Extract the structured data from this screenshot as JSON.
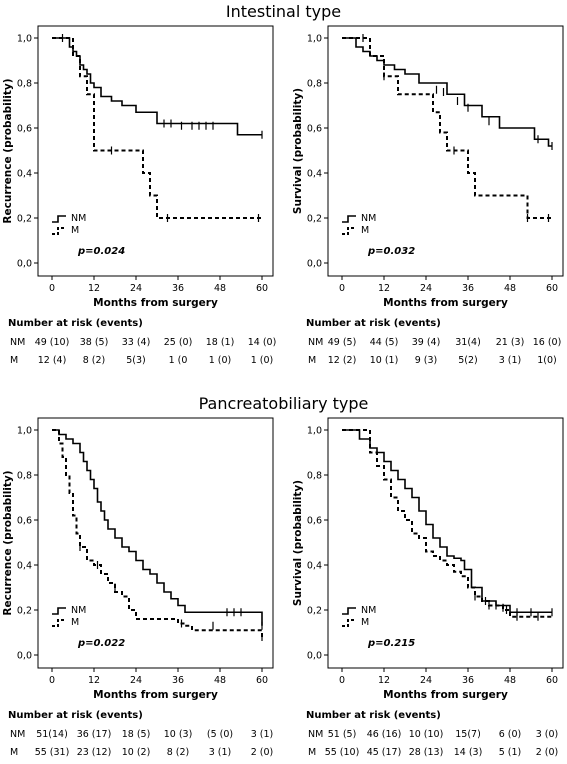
{
  "sections": [
    {
      "title": "Intestinal type"
    },
    {
      "title": "Pancreatobiliary type"
    }
  ],
  "chart_data": [
    {
      "type": "line",
      "section": "Intestinal type",
      "ylabel": "Recurrence (probability)",
      "xlabel": "Months from surgery",
      "xlim": [
        0,
        60
      ],
      "ylim": [
        0,
        1
      ],
      "xticks": [
        "0",
        "12",
        "24",
        "36",
        "48",
        "60"
      ],
      "yticks": [
        "0,0",
        "0,2",
        "0,4",
        "0,6",
        "0,8",
        "1,0"
      ],
      "pvalue": "p=0.024",
      "legend_labels": [
        "NM",
        "M"
      ],
      "series": [
        {
          "name": "NM",
          "style": "solid",
          "x": [
            0,
            5,
            6,
            7,
            8,
            9,
            10,
            11,
            12,
            14,
            17,
            20,
            24,
            30,
            53,
            60
          ],
          "y": [
            1,
            0.96,
            0.94,
            0.92,
            0.88,
            0.86,
            0.84,
            0.8,
            0.78,
            0.74,
            0.72,
            0.7,
            0.67,
            0.62,
            0.57,
            0.57
          ],
          "censor": [
            [
              3,
              1
            ],
            [
              32,
              0.62
            ],
            [
              34,
              0.62
            ],
            [
              37,
              0.61
            ],
            [
              40,
              0.61
            ],
            [
              42,
              0.61
            ],
            [
              44,
              0.61
            ],
            [
              46,
              0.61
            ],
            [
              60,
              0.57
            ]
          ]
        },
        {
          "name": "M",
          "style": "dashed",
          "x": [
            0,
            6,
            8,
            10,
            12,
            22,
            26,
            28,
            30,
            60
          ],
          "y": [
            1,
            0.92,
            0.83,
            0.75,
            0.5,
            0.5,
            0.4,
            0.3,
            0.2,
            0.2
          ],
          "censor": [
            [
              17,
              0.5
            ],
            [
              33,
              0.2
            ],
            [
              59,
              0.2
            ]
          ]
        }
      ],
      "risk_table": {
        "title": "Number at risk (events)",
        "rows": [
          {
            "label": "NM",
            "values": [
              "49 (10)",
              "38 (5)",
              "33 (4)",
              "25 (0)",
              "18 (1)",
              "14 (0)"
            ]
          },
          {
            "label": "M",
            "values": [
              "12 (4)",
              "8 (2)",
              "5(3)",
              "1 (0",
              "1 (0)",
              "1 (0)"
            ]
          }
        ]
      }
    },
    {
      "type": "line",
      "section": "Intestinal type",
      "ylabel": "Survival (probability)",
      "xlabel": "Months from surgery",
      "xlim": [
        0,
        60
      ],
      "ylim": [
        0,
        1
      ],
      "xticks": [
        "0",
        "12",
        "24",
        "36",
        "48",
        "60"
      ],
      "yticks": [
        "0,0",
        "0,2",
        "0,4",
        "0,6",
        "0,8",
        "1,0"
      ],
      "pvalue": "p=0.032",
      "legend_labels": [
        "NM",
        "M"
      ],
      "series": [
        {
          "name": "NM",
          "style": "solid",
          "x": [
            0,
            4,
            6,
            8,
            10,
            12,
            15,
            18,
            22,
            30,
            35,
            40,
            45,
            55,
            59,
            60
          ],
          "y": [
            1,
            0.96,
            0.94,
            0.92,
            0.9,
            0.88,
            0.86,
            0.84,
            0.8,
            0.75,
            0.7,
            0.65,
            0.6,
            0.55,
            0.52,
            0.52
          ],
          "censor": [
            [
              27,
              0.77
            ],
            [
              29,
              0.76
            ],
            [
              33,
              0.72
            ],
            [
              36,
              0.69
            ],
            [
              42,
              0.63
            ],
            [
              56,
              0.55
            ],
            [
              60,
              0.52
            ]
          ]
        },
        {
          "name": "M",
          "style": "dashed",
          "x": [
            0,
            8,
            12,
            16,
            26,
            28,
            30,
            36,
            38,
            40,
            53,
            60
          ],
          "y": [
            1,
            0.92,
            0.83,
            0.75,
            0.67,
            0.58,
            0.5,
            0.4,
            0.3,
            0.3,
            0.2,
            0.2
          ],
          "censor": [
            [
              6,
              1
            ],
            [
              12,
              0.83
            ],
            [
              32,
              0.5
            ],
            [
              53,
              0.2
            ],
            [
              59,
              0.2
            ]
          ]
        }
      ],
      "risk_table": {
        "title": "Number at risk (events)",
        "rows": [
          {
            "label": "NM",
            "values": [
              "49 (5)",
              "44 (5)",
              "39 (4)",
              "31(4)",
              "21 (3)",
              "16 (0)"
            ]
          },
          {
            "label": "M",
            "values": [
              "12 (2)",
              "10 (1)",
              "9 (3)",
              "5(2)",
              "3 (1)",
              "1(0)"
            ]
          }
        ]
      }
    },
    {
      "type": "line",
      "section": "Pancreatobiliary type",
      "ylabel": "Recurrence (probability)",
      "xlabel": "Months from surgery",
      "xlim": [
        0,
        60
      ],
      "ylim": [
        0,
        1
      ],
      "xticks": [
        "0",
        "12",
        "24",
        "36",
        "48",
        "60"
      ],
      "yticks": [
        "0,0",
        "0,2",
        "0,4",
        "0,6",
        "0,8",
        "1,0"
      ],
      "pvalue": "p=0.022",
      "legend_labels": [
        "NM",
        "M"
      ],
      "series": [
        {
          "name": "NM",
          "style": "solid",
          "x": [
            0,
            2,
            4,
            6,
            8,
            9,
            10,
            11,
            12,
            13,
            14,
            15,
            16,
            18,
            20,
            22,
            24,
            26,
            28,
            30,
            32,
            34,
            36,
            38,
            60
          ],
          "y": [
            1,
            0.98,
            0.96,
            0.94,
            0.9,
            0.86,
            0.82,
            0.78,
            0.74,
            0.68,
            0.64,
            0.6,
            0.56,
            0.52,
            0.48,
            0.46,
            0.42,
            0.38,
            0.36,
            0.32,
            0.28,
            0.25,
            0.22,
            0.19,
            0.13
          ],
          "censor": [
            [
              50,
              0.19
            ],
            [
              52,
              0.19
            ],
            [
              54,
              0.19
            ],
            [
              60,
              0.13
            ]
          ]
        },
        {
          "name": "M",
          "style": "dashed",
          "x": [
            0,
            2,
            3,
            4,
            5,
            6,
            7,
            8,
            10,
            12,
            14,
            16,
            18,
            20,
            22,
            24,
            36,
            38,
            40,
            60
          ],
          "y": [
            1,
            0.94,
            0.88,
            0.8,
            0.72,
            0.62,
            0.54,
            0.48,
            0.42,
            0.4,
            0.36,
            0.32,
            0.28,
            0.26,
            0.2,
            0.16,
            0.14,
            0.13,
            0.11,
            0.08
          ],
          "censor": [
            [
              8,
              0.48
            ],
            [
              13,
              0.4
            ],
            [
              18,
              0.3
            ],
            [
              37,
              0.14
            ],
            [
              46,
              0.13
            ],
            [
              60,
              0.08
            ]
          ]
        }
      ],
      "risk_table": {
        "title": "Number at risk (events)",
        "rows": [
          {
            "label": "NM",
            "values": [
              "51(14)",
              "36 (17)",
              "18 (5)",
              "10 (3)",
              "(5 (0)",
              "3 (1)"
            ]
          },
          {
            "label": "M",
            "values": [
              "55 (31)",
              "23 (12)",
              "10 (2)",
              "8 (2)",
              "3 (1)",
              "2 (0)"
            ]
          }
        ]
      }
    },
    {
      "type": "line",
      "section": "Pancreatobiliary type",
      "ylabel": "Survival (probability)",
      "xlabel": "Months from surgery",
      "xlim": [
        0,
        60
      ],
      "ylim": [
        0,
        1
      ],
      "xticks": [
        "0",
        "12",
        "24",
        "36",
        "48",
        "60"
      ],
      "yticks": [
        "0,0",
        "0,2",
        "0,4",
        "0,6",
        "0,8",
        "1,0"
      ],
      "pvalue": "p=0.215",
      "legend_labels": [
        "NM",
        "M"
      ],
      "series": [
        {
          "name": "NM",
          "style": "solid",
          "x": [
            0,
            5,
            8,
            10,
            12,
            14,
            16,
            18,
            20,
            22,
            24,
            26,
            28,
            30,
            32,
            34,
            35,
            37,
            40,
            44,
            48,
            60
          ],
          "y": [
            1,
            0.96,
            0.92,
            0.9,
            0.86,
            0.82,
            0.78,
            0.74,
            0.7,
            0.64,
            0.58,
            0.52,
            0.48,
            0.44,
            0.43,
            0.42,
            0.38,
            0.3,
            0.24,
            0.22,
            0.19,
            0.19
          ],
          "censor": [
            [
              41,
              0.24
            ],
            [
              44,
              0.22
            ],
            [
              46,
              0.21
            ],
            [
              50,
              0.19
            ],
            [
              54,
              0.19
            ],
            [
              60,
              0.19
            ]
          ]
        },
        {
          "name": "M",
          "style": "dashed",
          "x": [
            0,
            8,
            10,
            12,
            14,
            16,
            18,
            20,
            22,
            24,
            26,
            28,
            30,
            32,
            34,
            36,
            38,
            40,
            42,
            46,
            48,
            60
          ],
          "y": [
            1,
            0.9,
            0.84,
            0.78,
            0.7,
            0.64,
            0.6,
            0.54,
            0.52,
            0.46,
            0.44,
            0.42,
            0.4,
            0.37,
            0.35,
            0.3,
            0.26,
            0.24,
            0.22,
            0.2,
            0.17,
            0.17
          ],
          "censor": [
            [
              38,
              0.26
            ],
            [
              42,
              0.22
            ],
            [
              47,
              0.2
            ],
            [
              50,
              0.17
            ],
            [
              56,
              0.17
            ]
          ]
        }
      ],
      "risk_table": {
        "title": "Number at risk (events)",
        "rows": [
          {
            "label": "NM",
            "values": [
              "51 (5)",
              "46 (16)",
              "10 (10)",
              "15(7)",
              "6 (0)",
              "3 (0)"
            ]
          },
          {
            "label": "M",
            "values": [
              "55 (10)",
              "45 (17)",
              "28 (13)",
              "14 (3)",
              "5 (1)",
              "2 (0)"
            ]
          }
        ]
      }
    }
  ]
}
